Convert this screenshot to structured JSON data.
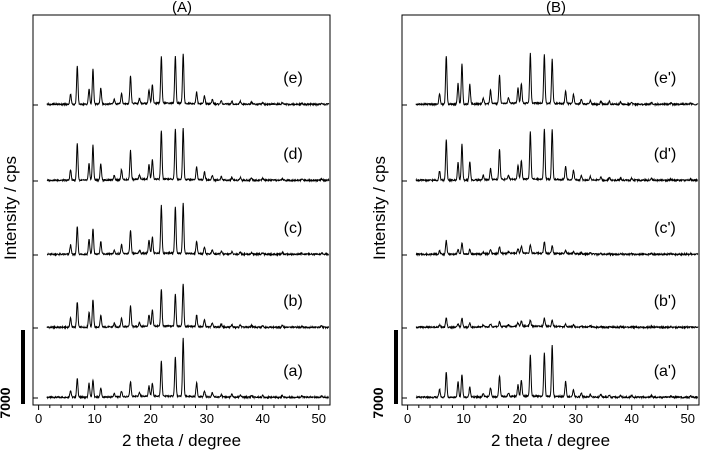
{
  "chart_data": [
    {
      "type": "line",
      "panel_label": "(A)",
      "xlabel": "2 theta / degree",
      "ylabel": "Intensity / cps",
      "xlim": [
        -1,
        52
      ],
      "xticks": [
        0,
        10,
        20,
        30,
        40,
        50
      ],
      "scale_bar_label": "7000",
      "grid": false,
      "peak_positions": [
        5.7,
        6.9,
        9.0,
        9.7,
        11.1,
        13.5,
        14.8,
        16.4,
        18.0,
        19.7,
        20.3,
        21.9,
        24.4,
        25.8,
        28.2,
        29.6,
        31.0,
        32.6,
        34.5,
        36.0,
        38.0,
        40.0,
        43.5,
        47.0,
        50.5
      ],
      "series": [
        {
          "name": "(a)",
          "peak_heights": [
            0.12,
            0.32,
            0.24,
            0.3,
            0.16,
            0.06,
            0.1,
            0.26,
            0.06,
            0.18,
            0.22,
            0.6,
            0.68,
            1.0,
            0.24,
            0.1,
            0.07,
            0.05,
            0.05,
            0.04,
            0.03,
            0.03,
            0.03,
            0.02,
            0.02
          ]
        },
        {
          "name": "(b)",
          "peak_heights": [
            0.16,
            0.44,
            0.26,
            0.48,
            0.2,
            0.06,
            0.15,
            0.36,
            0.06,
            0.2,
            0.28,
            0.64,
            0.56,
            0.74,
            0.2,
            0.12,
            0.07,
            0.05,
            0.04,
            0.04,
            0.03,
            0.03,
            0.03,
            0.02,
            0.02
          ]
        },
        {
          "name": "(c)",
          "peak_heights": [
            0.16,
            0.48,
            0.26,
            0.44,
            0.22,
            0.06,
            0.16,
            0.4,
            0.06,
            0.22,
            0.28,
            0.82,
            0.8,
            0.86,
            0.22,
            0.12,
            0.07,
            0.05,
            0.04,
            0.04,
            0.03,
            0.03,
            0.03,
            0.02,
            0.02
          ]
        },
        {
          "name": "(d)",
          "peak_heights": [
            0.18,
            0.64,
            0.28,
            0.6,
            0.28,
            0.08,
            0.18,
            0.5,
            0.08,
            0.26,
            0.34,
            0.84,
            0.86,
            0.88,
            0.22,
            0.14,
            0.08,
            0.06,
            0.05,
            0.05,
            0.04,
            0.03,
            0.03,
            0.02,
            0.02
          ]
        },
        {
          "name": "(e)",
          "peak_heights": [
            0.18,
            0.66,
            0.26,
            0.6,
            0.28,
            0.08,
            0.18,
            0.48,
            0.08,
            0.24,
            0.32,
            0.8,
            0.82,
            0.86,
            0.2,
            0.14,
            0.08,
            0.06,
            0.05,
            0.05,
            0.04,
            0.03,
            0.03,
            0.02,
            0.02
          ]
        }
      ]
    },
    {
      "type": "line",
      "panel_label": "(B)",
      "xlabel": "2 theta / degree",
      "ylabel": "Intensity / cps",
      "xlim": [
        -1,
        52
      ],
      "xticks": [
        0,
        10,
        20,
        30,
        40,
        50
      ],
      "scale_bar_label": "7000",
      "grid": false,
      "peak_positions": [
        5.7,
        6.9,
        9.0,
        9.7,
        11.1,
        13.5,
        14.8,
        16.4,
        18.0,
        19.7,
        20.3,
        21.9,
        24.4,
        25.8,
        28.2,
        29.6,
        31.0,
        32.6,
        34.5,
        36.0,
        38.0,
        40.0,
        43.5,
        47.0,
        50.5
      ],
      "series": [
        {
          "name": "(a')",
          "peak_heights": [
            0.14,
            0.44,
            0.26,
            0.4,
            0.18,
            0.06,
            0.16,
            0.36,
            0.06,
            0.2,
            0.28,
            0.7,
            0.74,
            0.88,
            0.26,
            0.12,
            0.07,
            0.05,
            0.05,
            0.04,
            0.03,
            0.03,
            0.03,
            0.02,
            0.02
          ]
        },
        {
          "name": "(b')",
          "peak_heights": [
            0.04,
            0.16,
            0.06,
            0.16,
            0.07,
            0.03,
            0.05,
            0.08,
            0.03,
            0.06,
            0.09,
            0.1,
            0.14,
            0.1,
            0.04,
            0.03,
            0.02,
            0.02,
            0.01,
            0.01,
            0.01,
            0.01,
            0.01,
            0.01,
            0.01
          ]
        },
        {
          "name": "(c')",
          "peak_heights": [
            0.06,
            0.24,
            0.08,
            0.2,
            0.08,
            0.03,
            0.07,
            0.12,
            0.03,
            0.08,
            0.12,
            0.14,
            0.2,
            0.14,
            0.05,
            0.03,
            0.02,
            0.02,
            0.01,
            0.01,
            0.01,
            0.01,
            0.01,
            0.01,
            0.01
          ]
        },
        {
          "name": "(d')",
          "peak_heights": [
            0.16,
            0.7,
            0.3,
            0.62,
            0.32,
            0.08,
            0.2,
            0.52,
            0.08,
            0.24,
            0.32,
            0.82,
            0.86,
            0.86,
            0.24,
            0.16,
            0.08,
            0.06,
            0.05,
            0.05,
            0.04,
            0.03,
            0.03,
            0.02,
            0.02
          ]
        },
        {
          "name": "(e')",
          "peak_heights": [
            0.18,
            0.84,
            0.36,
            0.7,
            0.34,
            0.1,
            0.24,
            0.5,
            0.1,
            0.26,
            0.34,
            0.86,
            0.84,
            0.76,
            0.22,
            0.16,
            0.08,
            0.06,
            0.05,
            0.05,
            0.04,
            0.03,
            0.03,
            0.02,
            0.02
          ]
        }
      ]
    }
  ]
}
